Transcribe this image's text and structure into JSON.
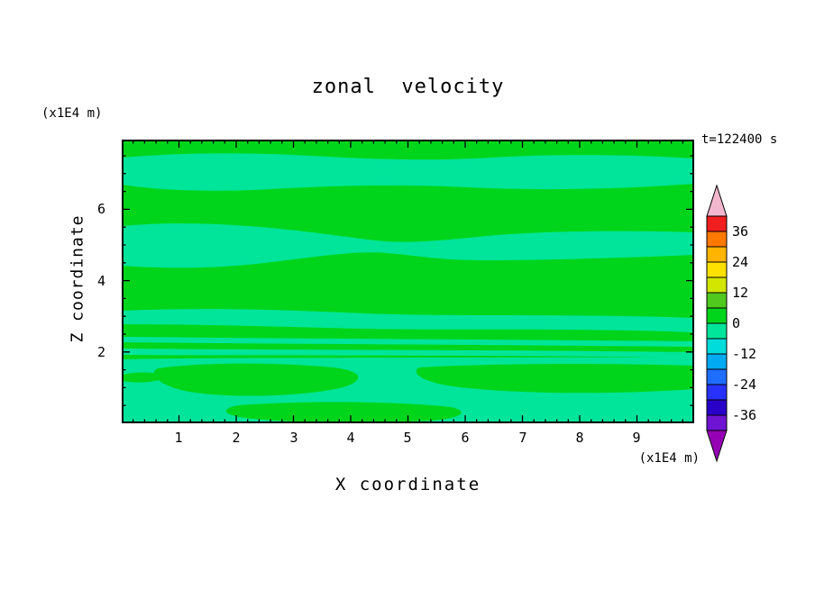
{
  "title": "zonal  velocity",
  "time_stamp": "t=122400 s",
  "x_axis": {
    "label": "X coordinate",
    "unit": "(x1E4 m)",
    "ticks": [
      "1",
      "2",
      "3",
      "4",
      "5",
      "6",
      "7",
      "8",
      "9"
    ]
  },
  "y_axis": {
    "label": "Z coordinate",
    "unit": "(x1E4 m)",
    "ticks": [
      "6",
      "4",
      "2"
    ]
  },
  "colorbar": {
    "labels": [
      "36",
      "24",
      "12",
      "0",
      "-12",
      "-24",
      "-36"
    ],
    "top_arrow_color": "#f2b6cd",
    "bottom_arrow_color": "#9600b4",
    "segments": [
      "#f01e1e",
      "#ff7800",
      "#ffb400",
      "#ffe100",
      "#d2e600",
      "#50c81e",
      "#00d51c",
      "#00e59a",
      "#00dcdc",
      "#00aaf0",
      "#1e6eff",
      "#2832ff",
      "#2800c8",
      "#6e14d2"
    ]
  },
  "chart_data": {
    "type": "heatmap",
    "variant": "filled_contour",
    "title": "zonal velocity",
    "xlabel": "X coordinate",
    "ylabel": "Z coordinate",
    "x_unit": "(x1E4 m)",
    "z_unit": "(x1E4 m)",
    "x_range": [
      0,
      10
    ],
    "z_range": [
      0,
      8
    ],
    "x_major_ticks": [
      1,
      2,
      3,
      4,
      5,
      6,
      7,
      8,
      9
    ],
    "z_major_ticks": [
      2,
      4,
      6
    ],
    "time": "t=122400 s",
    "contour_interval": 6,
    "colorbar_boundary_labels": [
      36,
      24,
      12,
      0,
      -12,
      -24,
      -36
    ],
    "value_range_shown": [
      -6,
      6
    ],
    "field_colors": {
      "positive": "#00d51c",
      "negative": "#00e59a"
    },
    "legend_position": "right",
    "grid": false,
    "description": "Filled contour field of zonal velocity at t=122400 s. Values oscillate weakly between -6 and 6: wavy horizontal bands of slightly negative velocity (mint green, -6 to 0) alternate with slightly positive velocity (bright green, 0 to 6); thin layered stripes appear near z=2 and irregular blobby structure fills the region below z=2."
  }
}
